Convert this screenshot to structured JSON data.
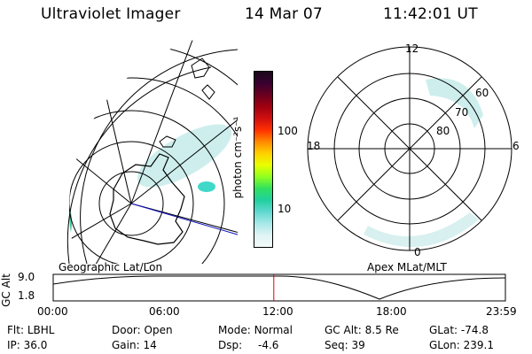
{
  "header": {
    "instrument": "Ultraviolet Imager",
    "date": "14 Mar 07",
    "time": "11:42:01 UT"
  },
  "left_panel": {
    "caption": "Geographic Lat/Lon"
  },
  "colorbar": {
    "unit_label": "photon cm⁻²s⁻¹",
    "ticks": [
      "100",
      "10"
    ],
    "scale": "log",
    "colors": [
      "#1a0a1a",
      "#3a0030",
      "#6a0020",
      "#a00010",
      "#d01010",
      "#ff3000",
      "#ff8a00",
      "#ffd000",
      "#e8ff00",
      "#90ff20",
      "#30e060",
      "#20d0a0",
      "#60d8d0",
      "#a8e8e8",
      "#e0f4f4",
      "#f4fafa"
    ]
  },
  "polar_panel": {
    "caption": "Apex MLat/MLT",
    "mlt_labels": {
      "top": "12",
      "left": "18",
      "right": "6",
      "bottom": "0"
    },
    "lat_labels": [
      "60",
      "70",
      "80"
    ]
  },
  "timeline": {
    "ylabel": "GC Alt",
    "yticks": [
      "9.0",
      "1.8"
    ],
    "xticks": [
      "00:00",
      "06:00",
      "12:00",
      "18:00",
      "23:59"
    ],
    "marker_time": "11:42",
    "marker_color": "#e00000"
  },
  "info": {
    "flt": {
      "label": "Flt:",
      "value": "LBHL"
    },
    "ip": {
      "label": "IP:",
      "value": "36.0"
    },
    "door": {
      "label": "Door:",
      "value": "Open"
    },
    "gain": {
      "label": "Gain:",
      "value": "14"
    },
    "mode": {
      "label": "Mode:",
      "value": "Normal"
    },
    "dsp": {
      "label": "Dsp:",
      "value": "-4.6"
    },
    "gc_alt": {
      "label": "GC Alt:",
      "value": "8.5 Re"
    },
    "seq": {
      "label": "Seq:",
      "value": "39"
    },
    "glat": {
      "label": "GLat:",
      "value": "-74.8"
    },
    "glon": {
      "label": "GLon:",
      "value": "239.1"
    }
  }
}
